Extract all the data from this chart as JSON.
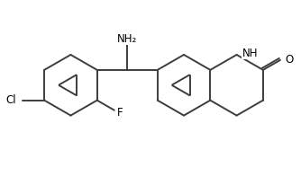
{
  "background": "#ffffff",
  "line_color": "#3d3d3d",
  "bond_width": 1.4,
  "figsize": [
    3.34,
    1.96
  ],
  "dpi": 100,
  "xlim": [
    0.0,
    1.0
  ],
  "ylim": [
    0.0,
    0.6
  ]
}
